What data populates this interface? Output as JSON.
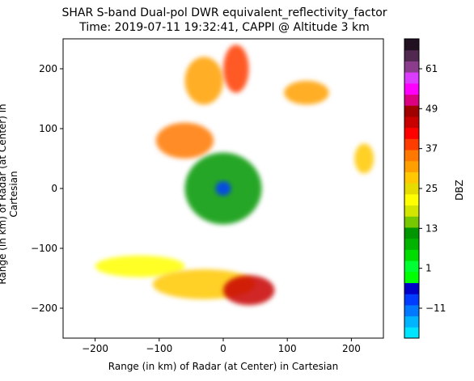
{
  "chart_data": {
    "type": "heatmap",
    "title": "SHAR S-band Dual-pol DWR equivalent_reflectivity_factor",
    "subtitle": "Time: 2019-07-11 19:32:41, CAPPI @ Altitude 3 km",
    "xlabel": "Range (in km) of Radar (at Center) in Cartesian",
    "ylabel": "Range (in km) of Radar (at Center) in Cartesian",
    "xlim": [
      -250,
      250
    ],
    "ylim": [
      -250,
      250
    ],
    "xticks": [
      -200,
      -100,
      0,
      100,
      200
    ],
    "yticks": [
      -200,
      -100,
      0,
      100,
      200
    ],
    "xtick_labels": [
      "−200",
      "−100",
      "0",
      "100",
      "200"
    ],
    "ytick_labels": [
      "−200",
      "−100",
      "0",
      "100",
      "200"
    ],
    "colorbar": {
      "label": "DBZ",
      "vmin": -20,
      "vmax": 70,
      "ticks": [
        -11,
        1,
        13,
        25,
        37,
        49,
        61
      ],
      "tick_labels": [
        "−11",
        "1",
        "13",
        "25",
        "37",
        "49",
        "61"
      ],
      "colors": [
        "#00e5ff",
        "#00b4ff",
        "#0078ff",
        "#003cff",
        "#0000c8",
        "#00ff00",
        "#00ff32",
        "#00dc00",
        "#00b400",
        "#009600",
        "#78c800",
        "#d2e600",
        "#ffff00",
        "#e6dc00",
        "#ffc800",
        "#ffa000",
        "#ff7800",
        "#ff3c00",
        "#ff0000",
        "#c80000",
        "#a00000",
        "#dc0082",
        "#ff00ff",
        "#dc3cff",
        "#8c3c8c",
        "#502850",
        "#201020"
      ]
    },
    "echo_regions": [
      {
        "x": 0,
        "y": 0,
        "rx": 60,
        "ry": 60,
        "dbz": 10,
        "description": "scattered weak echoes around radar"
      },
      {
        "x": 0,
        "y": 0,
        "rx": 12,
        "ry": 12,
        "dbz": -8,
        "description": "clear-air echoes at radar center"
      },
      {
        "x": -60,
        "y": 80,
        "rx": 45,
        "ry": 30,
        "dbz": 35,
        "description": "northwest band"
      },
      {
        "x": -30,
        "y": 180,
        "rx": 30,
        "ry": 40,
        "dbz": 32,
        "description": "north cells"
      },
      {
        "x": 20,
        "y": 200,
        "rx": 20,
        "ry": 40,
        "dbz": 38,
        "description": "north-northeast band"
      },
      {
        "x": 130,
        "y": 160,
        "rx": 35,
        "ry": 20,
        "dbz": 33,
        "description": "northeast cells"
      },
      {
        "x": -130,
        "y": -130,
        "rx": 70,
        "ry": 18,
        "dbz": 22,
        "description": "southwest stratiform band"
      },
      {
        "x": -30,
        "y": -160,
        "rx": 80,
        "ry": 25,
        "dbz": 28,
        "description": "south stratiform band"
      },
      {
        "x": 40,
        "y": -170,
        "rx": 40,
        "ry": 25,
        "dbz": 46,
        "description": "south convective core"
      },
      {
        "x": 220,
        "y": 50,
        "rx": 15,
        "ry": 25,
        "dbz": 27,
        "description": "east cells"
      }
    ]
  }
}
